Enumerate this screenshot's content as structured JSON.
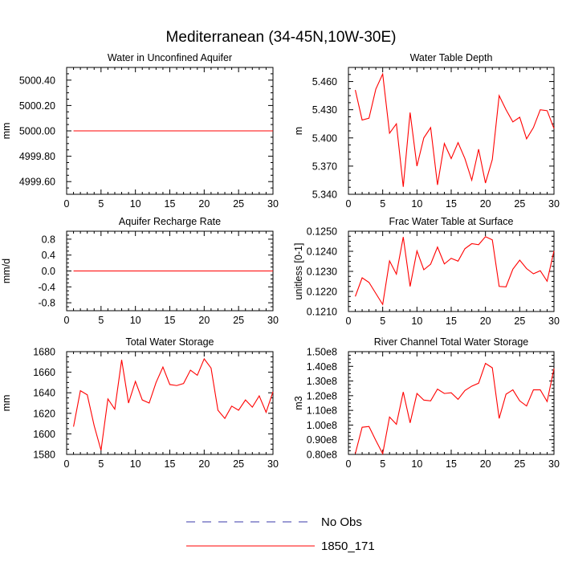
{
  "figure_title": "Mediterranean (34-45N,10W-30E)",
  "legend": {
    "items": [
      {
        "label": "No Obs",
        "color": "#3a3aa8",
        "style": "dashed"
      },
      {
        "label": "1850_171",
        "color": "#ff0000",
        "style": "solid"
      }
    ]
  },
  "chart_data": [
    {
      "type": "line",
      "title": "Water in Unconfined Aquifer",
      "ylabel": "mm",
      "xlim": [
        0,
        30
      ],
      "ylim": [
        4999.5,
        5000.5
      ],
      "xticks": [
        "0",
        "5",
        "10",
        "15",
        "20",
        "25",
        "30"
      ],
      "yticks": [
        {
          "value": 4999.6,
          "label": "4999.60"
        },
        {
          "value": 4999.8,
          "label": "4999.80"
        },
        {
          "value": 5000.0,
          "label": "5000.00"
        },
        {
          "value": 5000.2,
          "label": "5000.20"
        },
        {
          "value": 5000.4,
          "label": "5000.40"
        }
      ],
      "grid": false,
      "series": [
        {
          "name": "1850_171",
          "color": "#ff0000",
          "x": [
            1,
            2,
            3,
            4,
            5,
            6,
            7,
            8,
            9,
            10,
            11,
            12,
            13,
            14,
            15,
            16,
            17,
            18,
            19,
            20,
            21,
            22,
            23,
            24,
            25,
            26,
            27,
            28,
            29,
            30
          ],
          "y": [
            5000,
            5000,
            5000,
            5000,
            5000,
            5000,
            5000,
            5000,
            5000,
            5000,
            5000,
            5000,
            5000,
            5000,
            5000,
            5000,
            5000,
            5000,
            5000,
            5000,
            5000,
            5000,
            5000,
            5000,
            5000,
            5000,
            5000,
            5000,
            5000,
            5000
          ]
        }
      ]
    },
    {
      "type": "line",
      "title": "Water Table Depth",
      "ylabel": "m",
      "xlim": [
        0,
        30
      ],
      "ylim": [
        5.34,
        5.475
      ],
      "xticks": [
        "0",
        "5",
        "10",
        "15",
        "20",
        "25",
        "30"
      ],
      "yticks": [
        {
          "value": 5.34,
          "label": "5.340"
        },
        {
          "value": 5.37,
          "label": "5.370"
        },
        {
          "value": 5.4,
          "label": "5.400"
        },
        {
          "value": 5.43,
          "label": "5.430"
        },
        {
          "value": 5.46,
          "label": "5.460"
        }
      ],
      "grid": false,
      "series": [
        {
          "name": "1850_171",
          "color": "#ff0000",
          "x": [
            1,
            2,
            3,
            4,
            5,
            6,
            7,
            8,
            9,
            10,
            11,
            12,
            13,
            14,
            15,
            16,
            17,
            18,
            19,
            20,
            21,
            22,
            23,
            24,
            25,
            26,
            27,
            28,
            29,
            30
          ],
          "y": [
            5.451,
            5.419,
            5.421,
            5.452,
            5.468,
            5.405,
            5.415,
            5.348,
            5.427,
            5.37,
            5.4,
            5.411,
            5.35,
            5.394,
            5.378,
            5.395,
            5.378,
            5.355,
            5.388,
            5.352,
            5.377,
            5.445,
            5.43,
            5.417,
            5.422,
            5.399,
            5.411,
            5.43,
            5.429,
            5.41
          ]
        }
      ]
    },
    {
      "type": "line",
      "title": "Aquifer Recharge Rate",
      "ylabel": "mm/d",
      "xlim": [
        0,
        30
      ],
      "ylim": [
        -1.0,
        1.0
      ],
      "xticks": [
        "0",
        "5",
        "10",
        "15",
        "20",
        "25",
        "30"
      ],
      "yticks": [
        {
          "value": -0.8,
          "label": "-0.8"
        },
        {
          "value": -0.4,
          "label": "-0.4"
        },
        {
          "value": 0.0,
          "label": "0.0"
        },
        {
          "value": 0.4,
          "label": "0.4"
        },
        {
          "value": 0.8,
          "label": "0.8"
        }
      ],
      "grid": false,
      "series": [
        {
          "name": "1850_171",
          "color": "#ff0000",
          "x": [
            1,
            2,
            3,
            4,
            5,
            6,
            7,
            8,
            9,
            10,
            11,
            12,
            13,
            14,
            15,
            16,
            17,
            18,
            19,
            20,
            21,
            22,
            23,
            24,
            25,
            26,
            27,
            28,
            29,
            30
          ],
          "y": [
            0,
            0,
            0,
            0,
            0,
            0,
            0,
            0,
            0,
            0,
            0,
            0,
            0,
            0,
            0,
            0,
            0,
            0,
            0,
            0,
            0,
            0,
            0,
            0,
            0,
            0,
            0,
            0,
            0,
            0
          ]
        }
      ]
    },
    {
      "type": "line",
      "title": "Frac Water Table at Surface",
      "ylabel": "unitless [0-1]",
      "xlim": [
        0,
        30
      ],
      "ylim": [
        0.121,
        0.125
      ],
      "xticks": [
        "0",
        "5",
        "10",
        "15",
        "20",
        "25",
        "30"
      ],
      "yticks": [
        {
          "value": 0.121,
          "label": "0.1210"
        },
        {
          "value": 0.122,
          "label": "0.1220"
        },
        {
          "value": 0.123,
          "label": "0.1230"
        },
        {
          "value": 0.124,
          "label": "0.1240"
        },
        {
          "value": 0.125,
          "label": "0.1250"
        }
      ],
      "grid": false,
      "series": [
        {
          "name": "1850_171",
          "color": "#ff0000",
          "x": [
            1,
            2,
            3,
            4,
            5,
            6,
            7,
            8,
            9,
            10,
            11,
            12,
            13,
            14,
            15,
            16,
            17,
            18,
            19,
            20,
            21,
            22,
            23,
            24,
            25,
            26,
            27,
            28,
            29,
            30
          ],
          "y": [
            0.12175,
            0.12268,
            0.12245,
            0.1219,
            0.12135,
            0.12352,
            0.12286,
            0.12471,
            0.12225,
            0.12402,
            0.12308,
            0.12336,
            0.12421,
            0.12337,
            0.12365,
            0.12351,
            0.12413,
            0.12438,
            0.12433,
            0.12473,
            0.12457,
            0.12225,
            0.12223,
            0.12311,
            0.12356,
            0.12314,
            0.12288,
            0.12303,
            0.12251,
            0.12402
          ]
        }
      ]
    },
    {
      "type": "line",
      "title": "Total Water Storage",
      "ylabel": "mm",
      "xlim": [
        0,
        30
      ],
      "ylim": [
        1580,
        1680
      ],
      "xticks": [
        "0",
        "5",
        "10",
        "15",
        "20",
        "25",
        "30"
      ],
      "yticks": [
        {
          "value": 1580,
          "label": "1580"
        },
        {
          "value": 1600,
          "label": "1600"
        },
        {
          "value": 1620,
          "label": "1620"
        },
        {
          "value": 1640,
          "label": "1640"
        },
        {
          "value": 1660,
          "label": "1660"
        },
        {
          "value": 1680,
          "label": "1680"
        }
      ],
      "grid": false,
      "series": [
        {
          "name": "1850_171",
          "color": "#ff0000",
          "x": [
            1,
            2,
            3,
            4,
            5,
            6,
            7,
            8,
            9,
            10,
            11,
            12,
            13,
            14,
            15,
            16,
            17,
            18,
            19,
            20,
            21,
            22,
            23,
            24,
            25,
            26,
            27,
            28,
            29,
            30
          ],
          "y": [
            1607,
            1642,
            1638,
            1608,
            1584,
            1634,
            1624,
            1672,
            1630,
            1651,
            1633,
            1630,
            1650,
            1665,
            1648,
            1647,
            1649,
            1662,
            1657,
            1673,
            1664,
            1623,
            1615,
            1627,
            1623,
            1633,
            1626,
            1637,
            1621,
            1641
          ]
        }
      ]
    },
    {
      "type": "line",
      "title": "River Channel Total Water Storage",
      "ylabel": "m3",
      "xlim": [
        0,
        30
      ],
      "ylim": [
        80000000,
        150000000
      ],
      "xticks": [
        "0",
        "5",
        "10",
        "15",
        "20",
        "25",
        "30"
      ],
      "yticks": [
        {
          "value": 80000000,
          "label": "0.80e8"
        },
        {
          "value": 90000000,
          "label": "0.90e8"
        },
        {
          "value": 100000000,
          "label": "1.00e8"
        },
        {
          "value": 110000000,
          "label": "1.10e8"
        },
        {
          "value": 120000000,
          "label": "1.20e8"
        },
        {
          "value": 130000000,
          "label": "1.30e8"
        },
        {
          "value": 140000000,
          "label": "1.40e8"
        },
        {
          "value": 150000000,
          "label": "1.50e8"
        }
      ],
      "grid": false,
      "series": [
        {
          "name": "1850_171",
          "color": "#ff0000",
          "x": [
            1,
            2,
            3,
            4,
            5,
            6,
            7,
            8,
            9,
            10,
            11,
            12,
            13,
            14,
            15,
            16,
            17,
            18,
            19,
            20,
            21,
            22,
            23,
            24,
            25,
            26,
            27,
            28,
            29,
            30
          ],
          "y": [
            80500000,
            98500000,
            99000000,
            89500000,
            80500000,
            105500000,
            100500000,
            122500000,
            101500000,
            121500000,
            117000000,
            116500000,
            124500000,
            121500000,
            122000000,
            117500000,
            123500000,
            126500000,
            128500000,
            142000000,
            139000000,
            104500000,
            121000000,
            124000000,
            116500000,
            113000000,
            124000000,
            124000000,
            116000000,
            138500000
          ]
        }
      ]
    }
  ]
}
